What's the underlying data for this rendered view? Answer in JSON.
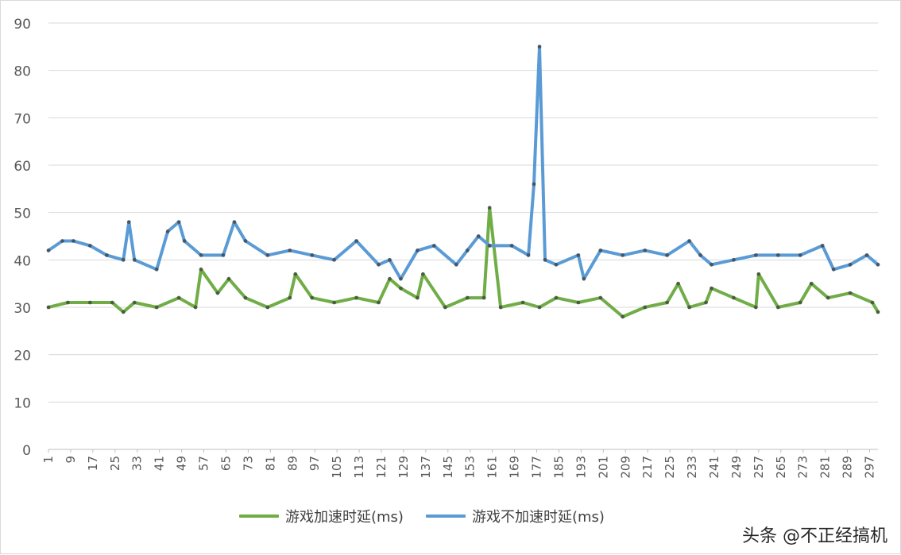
{
  "chart_data": {
    "type": "line",
    "title": "",
    "xlabel": "",
    "ylabel": "",
    "ylim": [
      0,
      90
    ],
    "yticks": [
      0,
      10,
      20,
      30,
      40,
      50,
      60,
      70,
      80,
      90
    ],
    "x_range": [
      1,
      300
    ],
    "xticks": [
      1,
      9,
      17,
      25,
      33,
      41,
      49,
      57,
      65,
      73,
      81,
      89,
      97,
      105,
      113,
      121,
      129,
      137,
      145,
      153,
      161,
      169,
      177,
      185,
      193,
      201,
      209,
      217,
      225,
      233,
      241,
      249,
      257,
      265,
      273,
      281,
      289,
      297
    ],
    "grid": "horizontal",
    "legend_position": "bottom",
    "series": [
      {
        "name": "游戏加速时延(ms)",
        "color": "#70ad47",
        "x": [
          1,
          8,
          16,
          24,
          28,
          32,
          40,
          48,
          54,
          56,
          62,
          66,
          72,
          80,
          88,
          90,
          96,
          104,
          112,
          120,
          124,
          128,
          134,
          136,
          144,
          152,
          158,
          160,
          164,
          172,
          178,
          184,
          192,
          200,
          208,
          216,
          224,
          228,
          232,
          238,
          240,
          248,
          256,
          257,
          264,
          272,
          276,
          282,
          290,
          298,
          300
        ],
        "values": [
          30,
          31,
          31,
          31,
          29,
          31,
          30,
          32,
          30,
          38,
          33,
          36,
          32,
          30,
          32,
          37,
          32,
          31,
          32,
          31,
          36,
          34,
          32,
          37,
          30,
          32,
          32,
          51,
          30,
          31,
          30,
          32,
          31,
          32,
          28,
          30,
          31,
          35,
          30,
          31,
          34,
          32,
          30,
          37,
          30,
          31,
          35,
          32,
          33,
          31,
          29
        ]
      },
      {
        "name": "游戏不加速时延(ms)",
        "color": "#5b9bd5",
        "x": [
          1,
          6,
          10,
          16,
          22,
          28,
          30,
          32,
          40,
          44,
          48,
          50,
          56,
          64,
          68,
          72,
          80,
          88,
          96,
          104,
          112,
          120,
          124,
          128,
          134,
          140,
          148,
          152,
          156,
          160,
          168,
          174,
          176,
          178,
          180,
          184,
          192,
          194,
          200,
          208,
          216,
          224,
          232,
          236,
          240,
          248,
          256,
          264,
          272,
          280,
          284,
          290,
          296,
          300
        ],
        "values": [
          42,
          44,
          44,
          43,
          41,
          40,
          48,
          40,
          38,
          46,
          48,
          44,
          41,
          41,
          48,
          44,
          41,
          42,
          41,
          40,
          44,
          39,
          40,
          36,
          42,
          43,
          39,
          42,
          45,
          43,
          43,
          41,
          56,
          85,
          40,
          39,
          41,
          36,
          42,
          41,
          42,
          41,
          44,
          41,
          39,
          40,
          41,
          41,
          41,
          43,
          38,
          39,
          41,
          39
        ]
      }
    ]
  },
  "legend": {
    "series_a": "游戏加速时延(ms)",
    "series_b": "游戏不加速时延(ms)"
  },
  "watermark": "头条 @不正经搞机"
}
